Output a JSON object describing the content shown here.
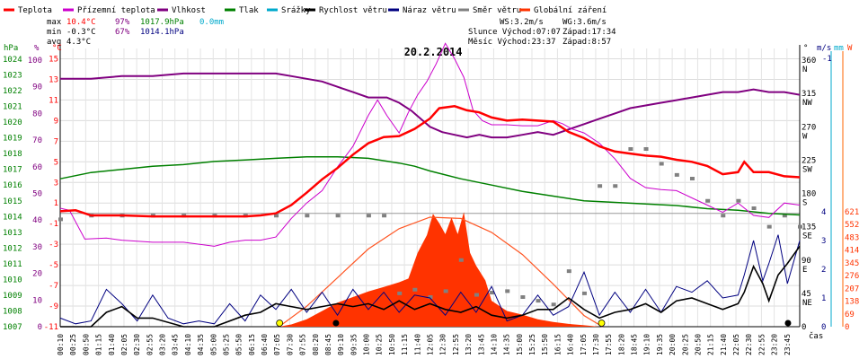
{
  "chart_data": {
    "type": "line",
    "title": "20.2.2014",
    "legend": [
      {
        "name": "Teplota",
        "color": "#ff0000"
      },
      {
        "name": "Přízemní teplota",
        "color": "#cc00cc"
      },
      {
        "name": "Vlhkost",
        "color": "#800080"
      },
      {
        "name": "Tlak",
        "color": "#008000"
      },
      {
        "name": "Srážky",
        "color": "#00aacc"
      },
      {
        "name": "Rychlost větru",
        "color": "#000000"
      },
      {
        "name": "Náraz větru",
        "color": "#000080"
      },
      {
        "name": "Směr větru",
        "color": "#808080"
      },
      {
        "name": "Globální záření",
        "color": "#ff3300"
      }
    ],
    "stats": {
      "max_label": "max",
      "min_label": "min",
      "avg_label": "avg",
      "max_temp": "10.4°C",
      "max_hum": "97%",
      "max_press": "1017.9hPa",
      "max_rain": "0.0mm",
      "min_temp": "-0.3°C",
      "min_hum": "67%",
      "min_press": "1014.1hPa",
      "avg_temp": "4.3°C"
    },
    "info": {
      "ws": "WS:3.2m/s",
      "wg": "WG:3.6m/s",
      "sun": "Slunce Východ:07:07",
      "sun_set": "Západ:17:34",
      "moon": "Měsíc Východ:23:37",
      "moon_set": "Západ:8:57"
    },
    "axis_labels": {
      "hpa": "hPa",
      "pct": "%",
      "degc": "°C",
      "dir": "°",
      "ms": "m/s",
      "mm": "mm",
      "w": "W",
      "cas": "čas"
    },
    "y_temp": {
      "ticks": [
        15,
        13,
        11,
        9,
        7,
        5,
        3,
        1,
        -1,
        -3,
        -5,
        -7,
        -9,
        -11
      ],
      "range": [
        -11,
        16
      ]
    },
    "y_pct": {
      "ticks": [
        100,
        90,
        80,
        70,
        60,
        50,
        40,
        30,
        20,
        10,
        0
      ]
    },
    "y_hpa": {
      "ticks": [
        1024,
        1023,
        1022,
        1021,
        1020,
        1019,
        1018,
        1017,
        1016,
        1015,
        1014,
        1013,
        1012,
        1011,
        1010,
        1009,
        1008,
        1007
      ]
    },
    "y_dir": {
      "ticks": [
        360,
        315,
        270,
        225,
        180,
        135,
        90,
        45,
        0
      ],
      "labels": [
        "N",
        "NW",
        "W",
        "SW",
        "S",
        "SE",
        "E",
        "NE",
        ""
      ]
    },
    "y_ms": {
      "ticks": [
        4,
        3,
        2,
        1,
        0
      ],
      "top": "-1"
    },
    "y_w": {
      "ticks": [
        621,
        552,
        483,
        414,
        345,
        276,
        207,
        138,
        69,
        0
      ]
    },
    "x_labels": [
      "00:10",
      "00:25",
      "00:50",
      "01:15",
      "01:40",
      "02:05",
      "02:30",
      "02:55",
      "03:20",
      "03:45",
      "04:10",
      "04:35",
      "05:00",
      "05:25",
      "05:50",
      "06:15",
      "06:40",
      "07:05",
      "07:30",
      "07:55",
      "08:20",
      "08:45",
      "09:10",
      "09:35",
      "10:00",
      "10:25",
      "10:50",
      "11:15",
      "11:40",
      "12:05",
      "12:30",
      "12:55",
      "13:20",
      "13:45",
      "14:10",
      "14:35",
      "15:00",
      "15:25",
      "15:50",
      "16:15",
      "16:40",
      "17:05",
      "17:30",
      "17:55",
      "18:20",
      "18:45",
      "19:10",
      "19:35",
      "20:00",
      "20:25",
      "20:50",
      "21:15",
      "21:40",
      "22:05",
      "22:30",
      "22:55",
      "23:20",
      "23:45"
    ],
    "series": {
      "teplota": {
        "hours": [
          0,
          0.5,
          1,
          2,
          3,
          4,
          5,
          6,
          6.5,
          7,
          7.5,
          8,
          8.5,
          9,
          9.5,
          10,
          10.5,
          11,
          11.5,
          12,
          12.3,
          12.8,
          13.2,
          13.6,
          14,
          14.5,
          15,
          15.5,
          16,
          16.5,
          17,
          17.5,
          18,
          18.5,
          19,
          19.5,
          20,
          20.5,
          21,
          21.5,
          22,
          22.2,
          22.5,
          23,
          23.5,
          24
        ],
        "values": [
          0.2,
          0.3,
          -0.2,
          -0.2,
          -0.3,
          -0.3,
          -0.3,
          -0.3,
          -0.2,
          0.0,
          0.8,
          2.0,
          3.3,
          4.4,
          5.7,
          6.8,
          7.4,
          7.5,
          8.2,
          9.2,
          10.2,
          10.4,
          10.0,
          9.8,
          9.3,
          9.0,
          9.1,
          9.0,
          8.9,
          7.9,
          7.3,
          6.5,
          6.0,
          5.8,
          5.6,
          5.5,
          5.2,
          5.0,
          4.6,
          3.8,
          4.0,
          5.0,
          4.0,
          4.0,
          3.6,
          3.5
        ]
      },
      "prizemni": {
        "hours": [
          0,
          0.3,
          0.8,
          1.5,
          2,
          3,
          4,
          5,
          5.5,
          6,
          6.5,
          7,
          7.5,
          8,
          8.5,
          9,
          9.5,
          10,
          10.3,
          10.6,
          11,
          11.3,
          11.6,
          11.9,
          12.2,
          12.5,
          12.8,
          13.1,
          13.4,
          13.7,
          14,
          14.5,
          15,
          15.5,
          16,
          16.3,
          16.6,
          17,
          17.5,
          18,
          18.5,
          19,
          19.5,
          20,
          20.5,
          21,
          21.5,
          22,
          22.5,
          23,
          23.5,
          24
        ],
        "values": [
          0.5,
          0.3,
          -2.5,
          -2.4,
          -2.6,
          -2.8,
          -2.8,
          -3.2,
          -2.8,
          -2.6,
          -2.6,
          -2.3,
          -0.5,
          1.0,
          2.2,
          4.5,
          6.5,
          9.5,
          11.0,
          9.5,
          7.8,
          9.8,
          11.5,
          12.8,
          14.5,
          16.5,
          15.0,
          13.2,
          10.0,
          9.0,
          8.6,
          8.6,
          8.5,
          8.5,
          9.0,
          8.7,
          8.2,
          7.8,
          6.8,
          5.3,
          3.4,
          2.5,
          2.3,
          2.2,
          1.5,
          0.8,
          0.1,
          1.0,
          -0.2,
          -0.4,
          1.0,
          0.8
        ]
      },
      "vlhkost": {
        "hours": [
          0,
          1,
          2,
          3,
          4,
          5,
          6,
          7,
          7.5,
          8,
          8.5,
          9,
          9.5,
          10,
          10.3,
          10.6,
          11,
          11.4,
          11.8,
          12,
          12.4,
          12.8,
          13.2,
          13.6,
          14,
          14.5,
          15,
          15.5,
          16,
          16.5,
          17,
          17.5,
          18,
          18.5,
          19,
          19.5,
          20,
          20.5,
          21,
          21.5,
          22,
          22.5,
          23,
          23.5,
          24
        ],
        "values": [
          93,
          93,
          94,
          94,
          95,
          95,
          95,
          95,
          94,
          93,
          92,
          90,
          88,
          86,
          86,
          86,
          84,
          81,
          77,
          75,
          73,
          72,
          71,
          72,
          71,
          71,
          72,
          73,
          72,
          74,
          76,
          78,
          80,
          82,
          83,
          84,
          85,
          86,
          87,
          88,
          88,
          89,
          88,
          88,
          87
        ]
      },
      "tlak": {
        "hours": [
          0,
          1,
          2,
          3,
          4,
          5,
          6,
          7,
          8,
          9,
          10,
          11,
          11.5,
          12,
          13,
          14,
          15,
          16,
          17,
          18,
          19,
          20,
          21,
          22,
          23,
          24
        ],
        "values": [
          1016.4,
          1016.8,
          1017.0,
          1017.2,
          1017.3,
          1017.5,
          1017.6,
          1017.7,
          1017.8,
          1017.8,
          1017.7,
          1017.4,
          1017.2,
          1016.9,
          1016.4,
          1016.0,
          1015.6,
          1015.3,
          1015.0,
          1014.9,
          1014.8,
          1014.7,
          1014.5,
          1014.4,
          1014.2,
          1014.1
        ]
      },
      "rychlost": {
        "hours": [
          0,
          1,
          1.5,
          2,
          2.5,
          3,
          4,
          5,
          6,
          6.5,
          7,
          7.5,
          8,
          8.5,
          9,
          9.5,
          10,
          10.5,
          11,
          11.5,
          12,
          12.5,
          13,
          13.5,
          14,
          14.5,
          15,
          15.5,
          16,
          16.5,
          17,
          17.5,
          18,
          18.5,
          19,
          19.5,
          20,
          20.5,
          21,
          21.5,
          22,
          22.2,
          22.5,
          22.8,
          23,
          23.3,
          23.6,
          24
        ],
        "values": [
          0,
          0,
          0.5,
          0.7,
          0.3,
          0.3,
          0,
          0,
          0.4,
          0.5,
          0.8,
          0.7,
          0.6,
          0.7,
          0.8,
          0.7,
          0.8,
          0.6,
          0.9,
          0.6,
          0.8,
          0.6,
          0.5,
          0.7,
          0.4,
          0.3,
          0.4,
          0.6,
          0.6,
          1.0,
          0.6,
          0.3,
          0.5,
          0.6,
          0.8,
          0.5,
          0.9,
          1.0,
          0.8,
          0.6,
          0.8,
          1.2,
          2.1,
          1.5,
          0.9,
          1.8,
          2.2,
          2.8
        ]
      },
      "naraz": {
        "hours": [
          0,
          0.5,
          1,
          1.5,
          2,
          2.5,
          3,
          3.5,
          4,
          4.5,
          5,
          5.5,
          6,
          6.5,
          7,
          7.5,
          8,
          8.5,
          9,
          9.5,
          10,
          10.5,
          11,
          11.5,
          12,
          12.5,
          13,
          13.5,
          14,
          14.5,
          15,
          15.5,
          16,
          16.5,
          17,
          17.5,
          18,
          18.5,
          19,
          19.5,
          20,
          20.5,
          21,
          21.5,
          22,
          22.2,
          22.5,
          22.8,
          23,
          23.3,
          23.6,
          24
        ],
        "values": [
          0.3,
          0.1,
          0.2,
          1.3,
          0.8,
          0.2,
          1.1,
          0.3,
          0.1,
          0.2,
          0.1,
          0.8,
          0.2,
          1.1,
          0.6,
          1.3,
          0.5,
          1.2,
          0.4,
          1.3,
          0.6,
          1.2,
          0.5,
          1.1,
          1.0,
          0.4,
          1.2,
          0.5,
          1.4,
          0.2,
          0.4,
          1.1,
          0.4,
          0.7,
          1.9,
          0.4,
          1.2,
          0.5,
          1.3,
          0.5,
          1.4,
          1.2,
          1.6,
          1.0,
          1.1,
          1.8,
          3.0,
          1.6,
          2.2,
          3.2,
          1.5,
          3.0
        ]
      },
      "smer": {
        "hours": [
          0,
          1,
          2,
          3,
          4,
          5,
          6,
          7,
          8,
          9,
          10,
          10.5,
          11,
          11.5,
          12,
          12.5,
          13,
          13.5,
          14,
          14.5,
          15,
          15.5,
          16,
          16.5,
          17,
          17.5,
          18,
          18.5,
          19,
          19.5,
          20,
          20.5,
          21,
          21.5,
          22,
          22.5,
          23,
          23.5,
          24
        ],
        "values": [
          145,
          150,
          150,
          150,
          150,
          150,
          150,
          150,
          150,
          150,
          150,
          150,
          45,
          50,
          40,
          48,
          90,
          43,
          46,
          48,
          40,
          35,
          30,
          75,
          45,
          190,
          190,
          240,
          240,
          220,
          205,
          200,
          170,
          150,
          170,
          160,
          135,
          150,
          135
        ]
      },
      "zareni": {
        "hours": [
          0,
          7.1,
          7.5,
          8,
          8.5,
          9,
          9.5,
          10,
          10.5,
          11,
          11.3,
          11.6,
          11.9,
          12.1,
          12.3,
          12.5,
          12.7,
          12.9,
          13.1,
          13.3,
          13.5,
          13.8,
          14,
          14.5,
          15,
          15.5,
          16,
          16.5,
          17,
          17.5,
          24
        ],
        "values": [
          0,
          0,
          12,
          40,
          85,
          130,
          160,
          190,
          215,
          240,
          260,
          400,
          495,
          610,
          560,
          500,
          590,
          500,
          620,
          400,
          330,
          250,
          140,
          85,
          65,
          40,
          25,
          15,
          8,
          0,
          0
        ]
      },
      "zareni_teor": {
        "hours": [
          7.1,
          8,
          9,
          10,
          11,
          12,
          13,
          14,
          15,
          16,
          17,
          17.6
        ],
        "values": [
          0,
          110,
          265,
          420,
          530,
          592,
          585,
          510,
          390,
          230,
          60,
          0
        ]
      }
    },
    "markers": {
      "sun_rise": 7.12,
      "sun_set": 17.57,
      "moon_rise": 23.62,
      "moon_set": 8.95
    }
  }
}
